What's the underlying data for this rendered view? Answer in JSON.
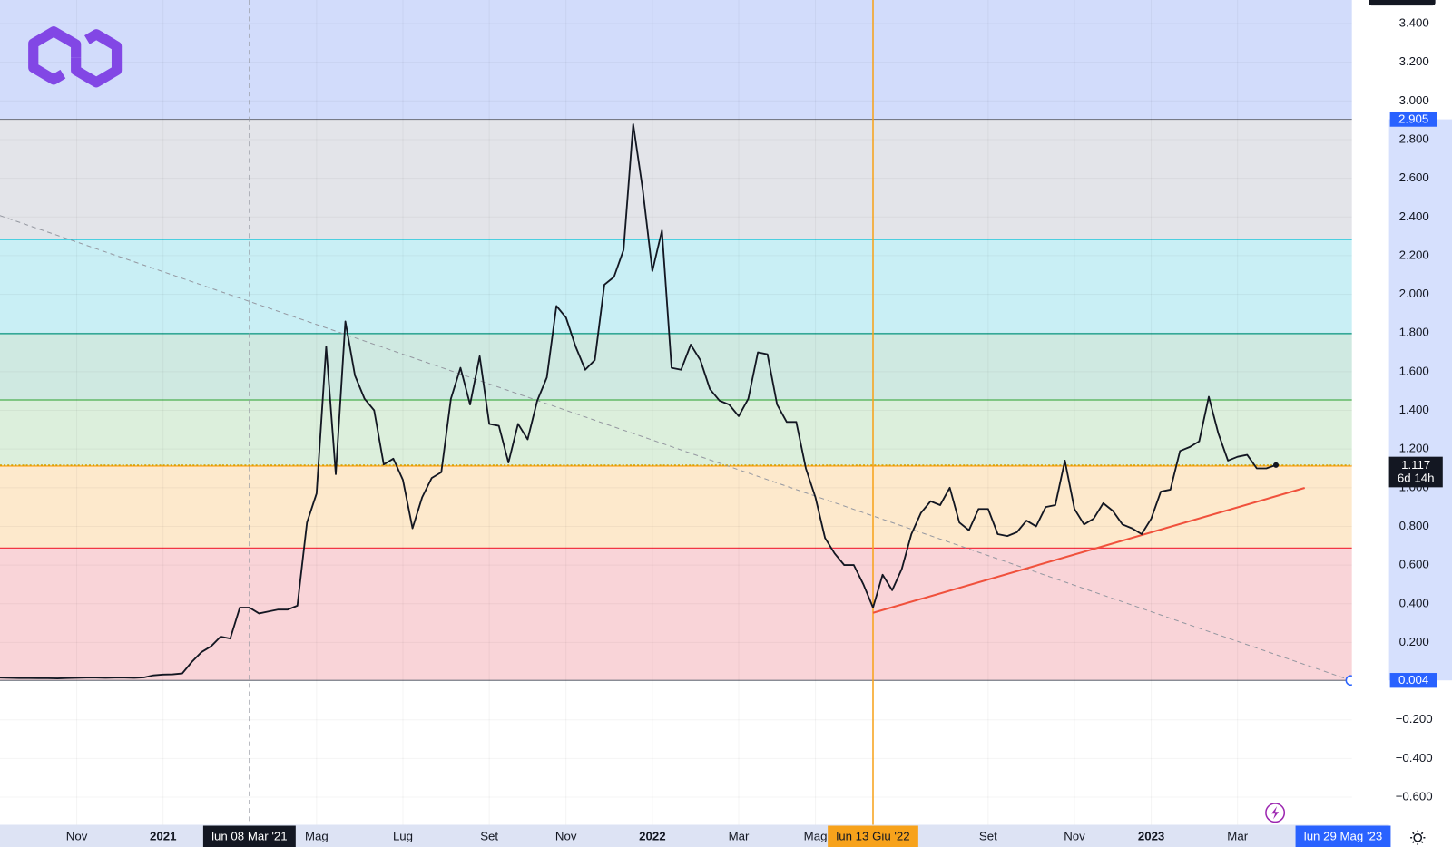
{
  "chart_data": {
    "type": "line",
    "categories": [
      null,
      null,
      null,
      null,
      null,
      null,
      null,
      null,
      "Nov",
      null,
      null,
      null,
      null,
      null,
      null,
      null,
      null,
      "2021",
      null,
      null,
      null,
      null,
      null,
      null,
      null,
      null,
      "lun 08 Mar '21",
      null,
      null,
      null,
      null,
      null,
      null,
      "Mag",
      null,
      null,
      null,
      null,
      null,
      null,
      null,
      null,
      "Lug",
      null,
      null,
      null,
      null,
      null,
      null,
      null,
      null,
      "Set",
      null,
      null,
      null,
      null,
      null,
      null,
      null,
      "Nov",
      null,
      null,
      null,
      null,
      null,
      null,
      null,
      null,
      "2022",
      null,
      null,
      null,
      null,
      null,
      null,
      null,
      null,
      "Mar",
      null,
      null,
      null,
      null,
      null,
      null,
      null,
      "Mag",
      null,
      null,
      null,
      null,
      null,
      "lun 13 Giu '22",
      null,
      null,
      null,
      null,
      null,
      null,
      null,
      null,
      null,
      null,
      null,
      "Set",
      null,
      null,
      null,
      null,
      null,
      null,
      null,
      null,
      "Nov",
      null,
      null,
      null,
      null,
      null,
      null,
      null,
      "2023",
      null,
      null,
      null,
      null,
      null,
      null,
      null,
      null,
      "Mar",
      null,
      null,
      null,
      null,
      null,
      null,
      null,
      null,
      null,
      null,
      "lun 29 Mag '23"
    ],
    "values": [
      0.018,
      0.017,
      0.016,
      0.016,
      0.015,
      0.015,
      0.014,
      0.016,
      0.017,
      0.018,
      0.018,
      0.017,
      0.018,
      0.018,
      0.017,
      0.019,
      0.03,
      0.034,
      0.035,
      0.04,
      0.1,
      0.15,
      0.18,
      0.23,
      0.22,
      0.38,
      0.38,
      0.35,
      0.36,
      0.37,
      0.37,
      0.39,
      0.82,
      0.97,
      1.73,
      1.07,
      1.86,
      1.58,
      1.46,
      1.4,
      1.12,
      1.15,
      1.04,
      0.79,
      0.95,
      1.05,
      1.08,
      1.46,
      1.62,
      1.43,
      1.68,
      1.33,
      1.32,
      1.13,
      1.33,
      1.25,
      1.45,
      1.57,
      1.94,
      1.88,
      1.73,
      1.61,
      1.66,
      2.05,
      2.09,
      2.23,
      2.88,
      2.54,
      2.12,
      2.33,
      1.62,
      1.61,
      1.74,
      1.66,
      1.51,
      1.45,
      1.43,
      1.37,
      1.46,
      1.7,
      1.69,
      1.43,
      1.34,
      1.34,
      1.1,
      0.95,
      0.74,
      0.66,
      0.6,
      0.6,
      0.5,
      0.38,
      0.55,
      0.47,
      0.58,
      0.76,
      0.87,
      0.93,
      0.91,
      1.0,
      0.82,
      0.78,
      0.89,
      0.89,
      0.76,
      0.75,
      0.77,
      0.83,
      0.8,
      0.9,
      0.91,
      1.14,
      0.89,
      0.81,
      0.84,
      0.92,
      0.88,
      0.81,
      0.79,
      0.76,
      0.84,
      0.98,
      0.99,
      1.19,
      1.21,
      1.24,
      1.47,
      1.28,
      1.14,
      1.16,
      1.17,
      1.1,
      1.1,
      1.117,
      null,
      null,
      null,
      null,
      null,
      null,
      null
    ],
    "color": "#131722",
    "ylim": [
      -0.743,
      3.522
    ],
    "yticks": [
      {
        "value": -0.6,
        "label": "−0.600"
      },
      {
        "value": -0.4,
        "label": "−0.400"
      },
      {
        "value": -0.2,
        "label": "−0.200"
      },
      {
        "value": 0.2,
        "label": "0.200"
      },
      {
        "value": 0.4,
        "label": "0.400"
      },
      {
        "value": 0.6,
        "label": "0.600"
      },
      {
        "value": 0.8,
        "label": "0.800"
      },
      {
        "value": 1.0,
        "label": "1.000"
      },
      {
        "value": 1.2,
        "label": "1.200"
      },
      {
        "value": 1.4,
        "label": "1.400"
      },
      {
        "value": 1.6,
        "label": "1.600"
      },
      {
        "value": 1.8,
        "label": "1.800"
      },
      {
        "value": 2.0,
        "label": "2.000"
      },
      {
        "value": 2.2,
        "label": "2.200"
      },
      {
        "value": 2.4,
        "label": "2.400"
      },
      {
        "value": 2.6,
        "label": "2.600"
      },
      {
        "value": 2.8,
        "label": "2.800"
      },
      {
        "value": 3.0,
        "label": "3.000"
      },
      {
        "value": 3.2,
        "label": "3.200"
      },
      {
        "value": 3.4,
        "label": "3.400"
      }
    ],
    "grid": true,
    "fib": {
      "levels": [
        {
          "value": 0.004,
          "label": "0.004"
        },
        0.688,
        1.112,
        1.454,
        1.797,
        2.284,
        {
          "value": 2.905,
          "label": "2.905"
        }
      ],
      "line_colors": [
        "#787b86",
        "#f23645",
        "#ff9800",
        "#4caf50",
        "#089981",
        "#00bcd4",
        "#787b86"
      ],
      "fill_colors": [
        "#f9d4d8",
        "#fde9cc",
        "#dcefdc",
        "#cfe9e1",
        "#c9eff5",
        "#e3e4e9",
        "#d2dcfb"
      ],
      "badge_color": "#2962ff"
    },
    "current": {
      "value": 1.117,
      "label": "1.117",
      "countdown": "6d 14h",
      "line_color": "#c9a200"
    },
    "x_highlights": [
      {
        "index": 26,
        "line": "dashed",
        "color": "#9598a1",
        "badge": "#131722",
        "text_color": "#ffffff"
      },
      {
        "index": 91,
        "line": "solid",
        "color": "#f7a21b",
        "badge": "#f7a21b",
        "text_color": "#131722"
      },
      {
        "index": 140,
        "line": "none",
        "color": "#2962ff",
        "badge": "#2962ff",
        "text_color": "#ffffff"
      }
    ],
    "trendlines": [
      {
        "start": [
          0,
          2.407
        ],
        "end": [
          140.8,
          0.004
        ],
        "color": "#9598a1",
        "dashed": true
      },
      {
        "start": [
          91,
          0.353
        ],
        "end": [
          136,
          0.999
        ],
        "color": "#f0513c",
        "dashed": false
      }
    ]
  }
}
